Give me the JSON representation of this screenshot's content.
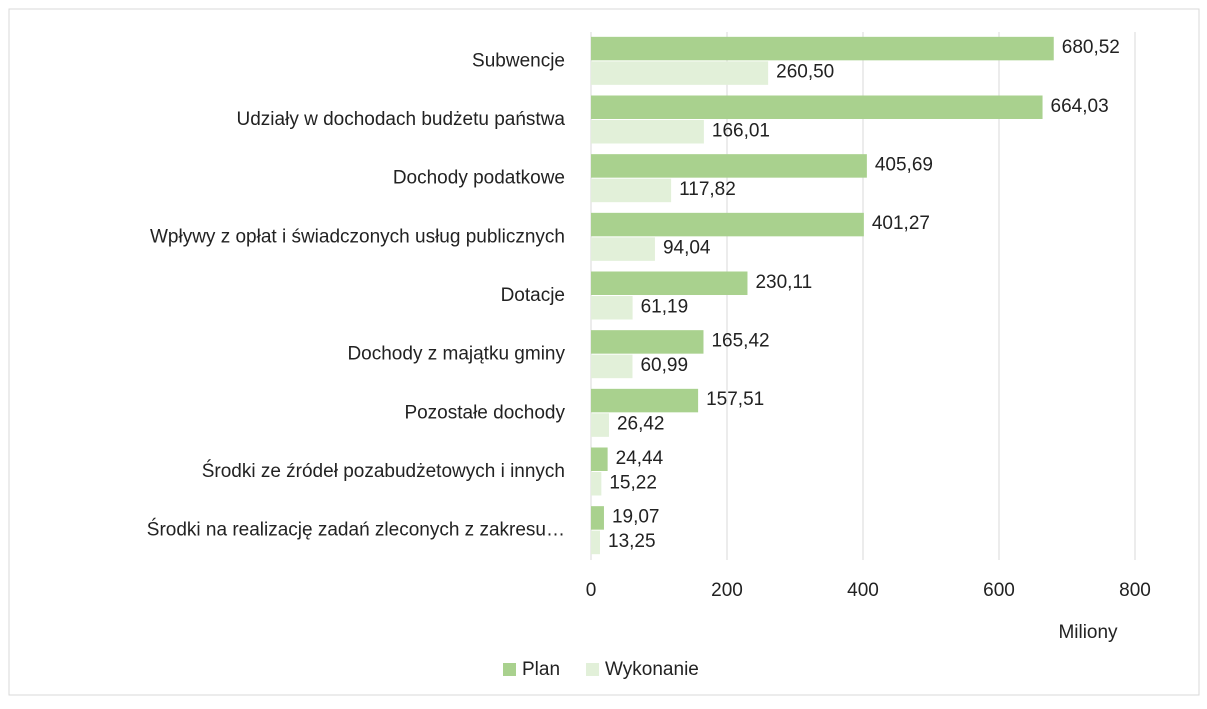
{
  "chart_data": {
    "type": "bar",
    "orientation": "horizontal",
    "categories": [
      "Subwencje",
      "Udziały w dochodach budżetu państwa",
      "Dochody podatkowe",
      "Wpływy z opłat i świadczonych usług publicznych",
      "Dotacje",
      "Dochody z majątku gminy",
      "Pozostałe dochody",
      "Środki ze źródeł pozabudżetowych i innych",
      "Środki na realizację zadań zleconych z zakresu…"
    ],
    "series": [
      {
        "name": "Plan",
        "color": "#a9d18e",
        "values": [
          680.52,
          664.03,
          405.69,
          401.27,
          230.11,
          165.42,
          157.51,
          24.44,
          19.07
        ],
        "value_labels": [
          "680,52",
          "664,03",
          "405,69",
          "401,27",
          "230,11",
          "165,42",
          "157,51",
          "24,44",
          "19,07"
        ]
      },
      {
        "name": "Wykonanie",
        "color": "#e2f0d9",
        "values": [
          260.5,
          166.01,
          117.82,
          94.04,
          61.19,
          60.99,
          26.42,
          15.22,
          13.25
        ],
        "value_labels": [
          "260,50",
          "166,01",
          "117,82",
          "94,04",
          "61,19",
          "60,99",
          "26,42",
          "15,22",
          "13,25"
        ]
      }
    ],
    "xlabel": "Miliony",
    "xlim": [
      0,
      800
    ],
    "xticks": [
      0,
      200,
      400,
      600,
      800
    ],
    "grid": true,
    "legend": "bottom"
  }
}
